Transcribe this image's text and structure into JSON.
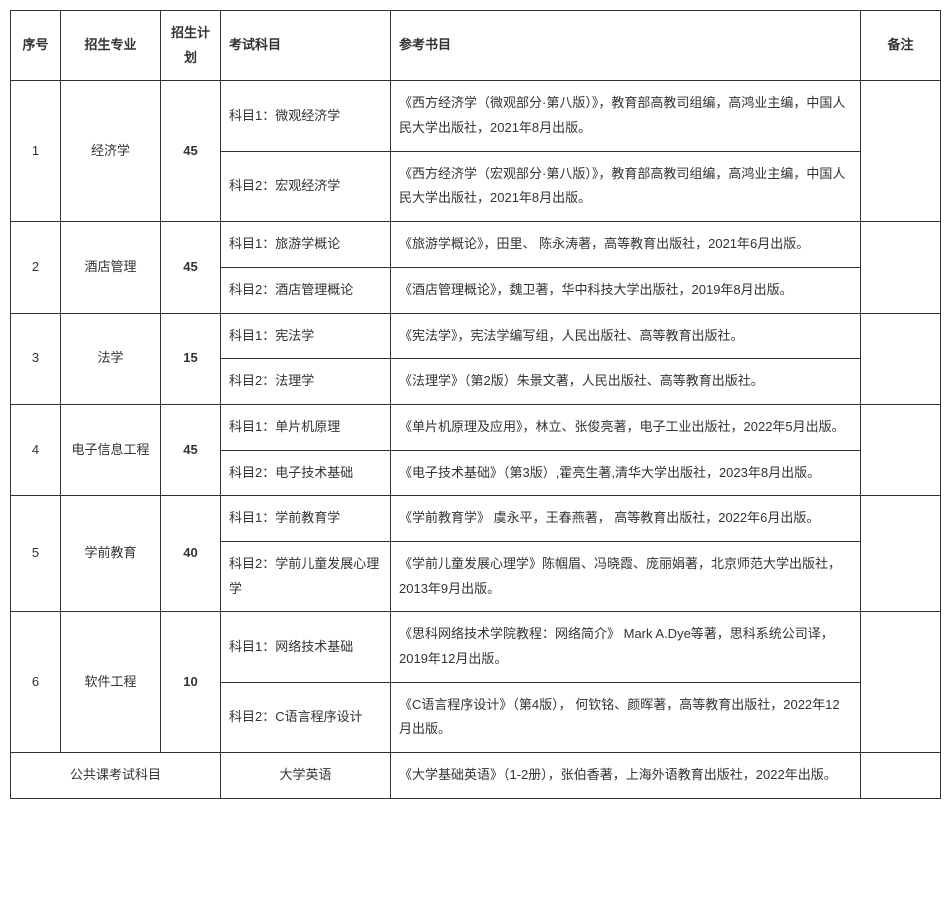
{
  "headers": {
    "seq": "序号",
    "major": "招生专业",
    "plan": "招生计划",
    "subject": "考试科目",
    "ref": "参考书目",
    "note": "备注"
  },
  "rows": [
    {
      "seq": "1",
      "major": "经济学",
      "plan": "45",
      "subjects": [
        {
          "name": "科目1：微观经济学",
          "ref": "《西方经济学（微观部分·第八版）》，教育部高教司组编，高鸿业主编，中国人民大学出版社，2021年8月出版。"
        },
        {
          "name": "科目2：宏观经济学",
          "ref": "《西方经济学（宏观部分·第八版）》，教育部高教司组编，高鸿业主编，中国人民大学出版社，2021年8月出版。"
        }
      ],
      "note": ""
    },
    {
      "seq": "2",
      "major": "酒店管理",
      "plan": "45",
      "subjects": [
        {
          "name": "科目1：旅游学概论",
          "ref": "《旅游学概论》，田里、 陈永涛著，高等教育出版社，2021年6月出版。"
        },
        {
          "name": "科目2：酒店管理概论",
          "ref": "《酒店管理概论》，魏卫著，华中科技大学出版社，2019年8月出版。"
        }
      ],
      "note": ""
    },
    {
      "seq": "3",
      "major": "法学",
      "plan": "15",
      "subjects": [
        {
          "name": "科目1：宪法学",
          "ref": "《宪法学》，宪法学编写组，人民出版社、高等教育出版社。"
        },
        {
          "name": "科目2：法理学",
          "ref": "《法理学》（第2版）朱景文著，人民出版社、高等教育出版社。"
        }
      ],
      "note": ""
    },
    {
      "seq": "4",
      "major": "电子信息工程",
      "plan": "45",
      "subjects": [
        {
          "name": "科目1：单片机原理",
          "ref": "《单片机原理及应用》，林立、张俊亮著，电子工业出版社，2022年5月出版。"
        },
        {
          "name": "科目2：电子技术基础",
          "ref": "《电子技术基础》（第3版）,霍亮生著,清华大学出版社，2023年8月出版。"
        }
      ],
      "note": ""
    },
    {
      "seq": "5",
      "major": "学前教育",
      "plan": "40",
      "subjects": [
        {
          "name": "科目1：学前教育学",
          "ref": "《学前教育学》 虞永平，王春燕著， 高等教育出版社，2022年6月出版。"
        },
        {
          "name": "科目2：学前儿童发展心理学",
          "ref": "《学前儿童发展心理学》陈帼眉、冯晓霞、庞丽娟著，北京师范大学出版社，2013年9月出版。"
        }
      ],
      "note": ""
    },
    {
      "seq": "6",
      "major": "软件工程",
      "plan": "10",
      "subjects": [
        {
          "name": "科目1：网络技术基础",
          "ref": "《思科网络技术学院教程：网络简介》 Mark A.Dye等著，思科系统公司译，2019年12月出版。"
        },
        {
          "name": "科目2：C语言程序设计",
          "ref": "《C语言程序设计》（第4版）， 何钦铭、颜晖著，高等教育出版社，2022年12月出版。"
        }
      ],
      "note": ""
    }
  ],
  "footer": {
    "label": "公共课考试科目",
    "subject": "大学英语",
    "ref": "《大学基础英语》（1-2册），张伯香著，上海外语教育出版社，2022年出版。",
    "note": ""
  }
}
